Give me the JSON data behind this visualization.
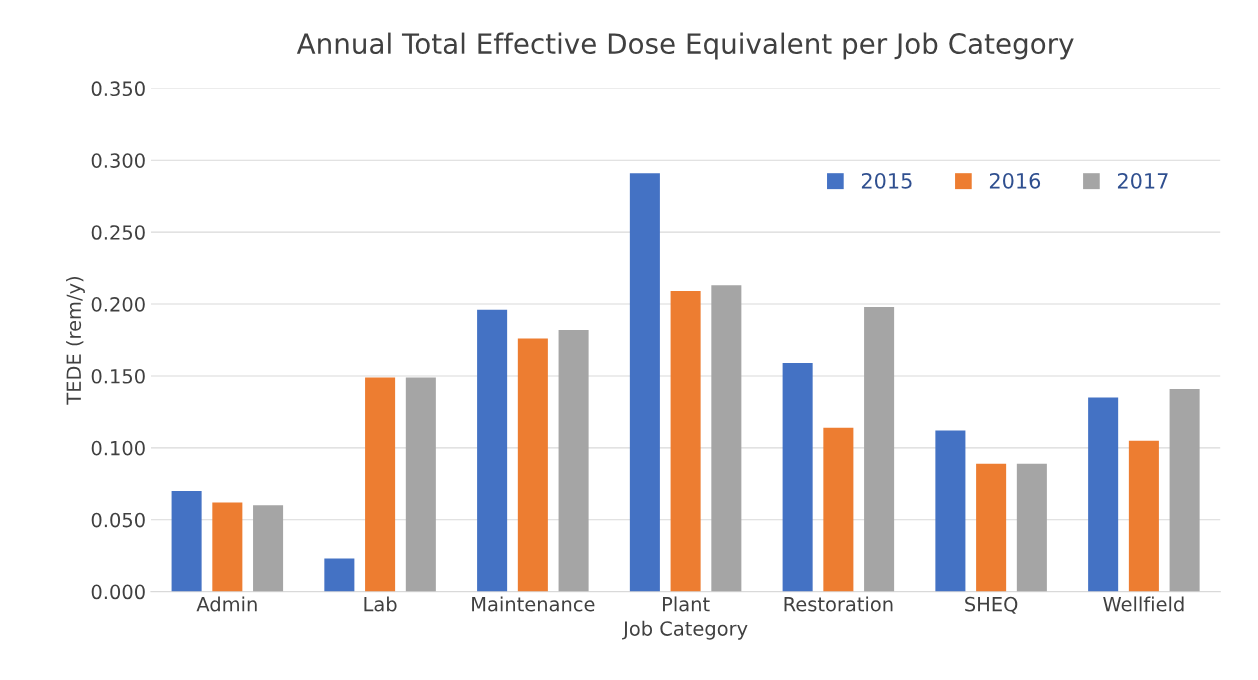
{
  "chart_data": {
    "type": "bar",
    "title": "Annual Total Effective Dose Equivalent per Job Category",
    "xlabel": "Job Category",
    "ylabel": "TEDE (rem/y)",
    "categories": [
      "Admin",
      "Lab",
      "Maintenance",
      "Plant",
      "Restoration",
      "SHEQ",
      "Wellfield"
    ],
    "series": [
      {
        "name": "2015",
        "color": "#4472c4",
        "values": [
          0.07,
          0.023,
          0.196,
          0.291,
          0.159,
          0.112,
          0.135
        ]
      },
      {
        "name": "2016",
        "color": "#ed7d31",
        "values": [
          0.062,
          0.149,
          0.176,
          0.209,
          0.114,
          0.089,
          0.105
        ]
      },
      {
        "name": "2017",
        "color": "#a5a5a5",
        "values": [
          0.06,
          0.149,
          0.182,
          0.213,
          0.198,
          0.089,
          0.141
        ]
      }
    ],
    "ylim": [
      0,
      0.35
    ],
    "yticks": [
      {
        "value": 0,
        "label": "0.000"
      },
      {
        "value": 0.05,
        "label": "0.050"
      },
      {
        "value": 0.1,
        "label": "0.100"
      },
      {
        "value": 0.15,
        "label": "0.150"
      },
      {
        "value": 0.2,
        "label": "0.200"
      },
      {
        "value": 0.25,
        "label": "0.250"
      },
      {
        "value": 0.3,
        "label": "0.300"
      },
      {
        "value": 0.35,
        "label": "0.350"
      }
    ],
    "grid": "y",
    "legend": "top right"
  }
}
